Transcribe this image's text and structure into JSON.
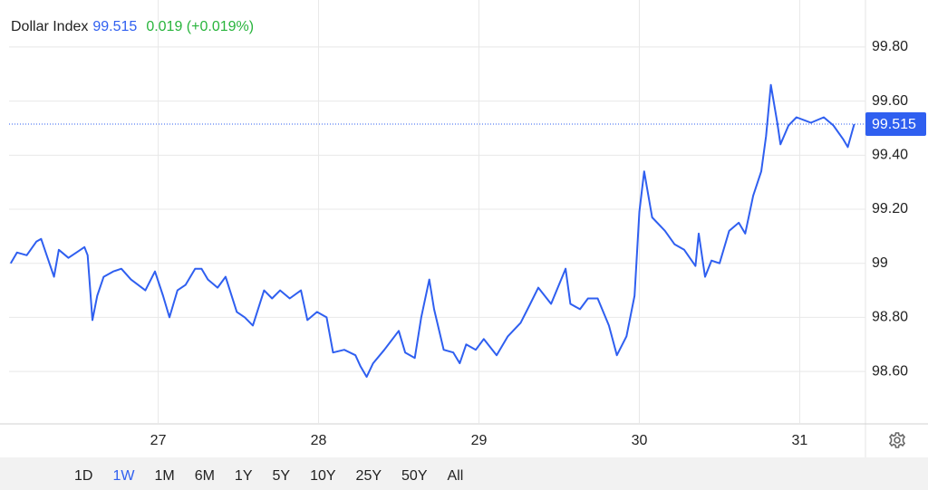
{
  "chart_data": {
    "type": "line",
    "title": "Dollar Index",
    "last_value": 99.515,
    "change_label": "0.019 (+0.019%)",
    "color": "#2f5ff0",
    "x": [
      26.08,
      26.12,
      26.18,
      26.24,
      26.27,
      26.31,
      26.35,
      26.38,
      26.44,
      26.49,
      26.54,
      26.56,
      26.59,
      26.62,
      26.66,
      26.72,
      26.77,
      26.83,
      26.92,
      26.98,
      27.03,
      27.07,
      27.12,
      27.17,
      27.23,
      27.27,
      27.31,
      27.37,
      27.42,
      27.49,
      27.54,
      27.59,
      27.66,
      27.71,
      27.76,
      27.82,
      27.89,
      27.93,
      27.99,
      28.05,
      28.09,
      28.16,
      28.23,
      28.26,
      28.3,
      28.34,
      28.41,
      28.5,
      28.54,
      28.6,
      28.64,
      28.69,
      28.72,
      28.78,
      28.84,
      28.88,
      28.92,
      28.98,
      29.03,
      29.11,
      29.18,
      29.26,
      29.32,
      29.37,
      29.45,
      29.54,
      29.57,
      29.63,
      29.68,
      29.74,
      29.81,
      29.86,
      29.92,
      29.97,
      30.0,
      30.03,
      30.08,
      30.16,
      30.22,
      30.28,
      30.35,
      30.37,
      30.41,
      30.45,
      30.5,
      30.56,
      30.62,
      30.66,
      30.71,
      30.76,
      30.79,
      30.82,
      30.86,
      30.88,
      30.93,
      30.98,
      31.07,
      31.15,
      31.21,
      31.27,
      31.3,
      31.34
    ],
    "values": [
      99.0,
      99.04,
      99.03,
      99.08,
      99.09,
      99.02,
      98.95,
      99.05,
      99.02,
      99.04,
      99.06,
      99.03,
      98.79,
      98.88,
      98.95,
      98.97,
      98.98,
      98.94,
      98.9,
      98.97,
      98.88,
      98.8,
      98.9,
      98.92,
      98.98,
      98.98,
      98.94,
      98.91,
      98.95,
      98.82,
      98.8,
      98.77,
      98.9,
      98.87,
      98.9,
      98.87,
      98.9,
      98.79,
      98.82,
      98.8,
      98.67,
      98.68,
      98.66,
      98.62,
      98.58,
      98.63,
      98.68,
      98.75,
      98.67,
      98.65,
      98.8,
      98.94,
      98.83,
      98.68,
      98.67,
      98.63,
      98.7,
      98.68,
      98.72,
      98.66,
      98.73,
      98.78,
      98.85,
      98.91,
      98.85,
      98.98,
      98.85,
      98.83,
      98.87,
      98.87,
      98.77,
      98.66,
      98.73,
      98.88,
      99.19,
      99.34,
      99.17,
      99.12,
      99.07,
      99.05,
      98.99,
      99.11,
      98.95,
      99.01,
      99.0,
      99.12,
      99.15,
      99.11,
      99.25,
      99.34,
      99.47,
      99.66,
      99.52,
      99.44,
      99.51,
      99.54,
      99.52,
      99.54,
      99.51,
      99.46,
      99.43,
      99.515
    ],
    "xlim": [
      26.07,
      31.41
    ],
    "xticks": [
      27,
      28,
      29,
      30,
      31
    ],
    "ylim": [
      98.406,
      99.974
    ],
    "yticks": [
      {
        "value": 98.6,
        "label": "98.60"
      },
      {
        "value": 98.8,
        "label": "98.80"
      },
      99,
      {
        "value": 99.2,
        "label": "99.20"
      },
      {
        "value": 99.4,
        "label": "99.40"
      },
      {
        "value": 99.6,
        "label": "99.60"
      },
      {
        "value": 99.8,
        "label": "99.80"
      }
    ],
    "grid": true
  },
  "range_buttons": {
    "items": [
      "1D",
      "1W",
      "1M",
      "6M",
      "1Y",
      "5Y",
      "10Y",
      "25Y",
      "50Y",
      "All"
    ],
    "selected": 1
  }
}
